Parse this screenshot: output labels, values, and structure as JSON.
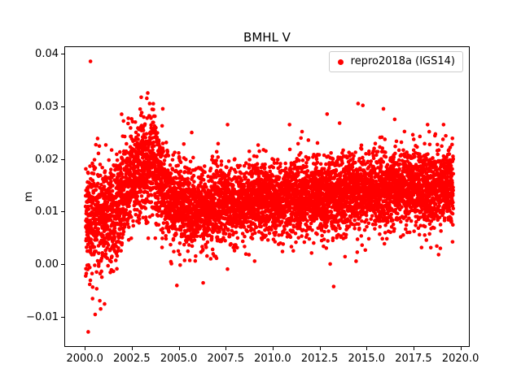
{
  "chart_data": {
    "type": "scatter",
    "title": "BMHL V",
    "xlabel": "",
    "ylabel": "m",
    "grid": false,
    "xlim": [
      1998.95,
      2020.45
    ],
    "ylim": [
      -0.0155,
      0.0412
    ],
    "x_tick_values": [
      2000.0,
      2002.5,
      2005.0,
      2007.5,
      2010.0,
      2012.5,
      2015.0,
      2017.5,
      2020.0
    ],
    "x_tick_labels": [
      "2000.0",
      "2002.5",
      "2005.0",
      "2007.5",
      "2010.0",
      "2012.5",
      "2015.0",
      "2017.5",
      "2020.0"
    ],
    "y_tick_values": [
      -0.01,
      0.0,
      0.01,
      0.02,
      0.03,
      0.04
    ],
    "y_tick_labels": [
      "−0.01",
      "0.00",
      "0.01",
      "0.02",
      "0.03",
      "0.04"
    ],
    "legend": {
      "position": "upper right",
      "entries": [
        {
          "label": "repro2018a (IGS14)",
          "color": "#ff0000",
          "marker": "circle"
        }
      ]
    },
    "series": [
      {
        "name": "repro2018a (IGS14)",
        "color": "#ff0000",
        "marker_radius_px": 2.3,
        "n_points": 6500,
        "t_start": 2000.04,
        "t_end": 2019.62,
        "seed": 1234,
        "mean_knots": [
          [
            2000.0,
            0.0075
          ],
          [
            2000.8,
            0.0085
          ],
          [
            2001.5,
            0.01
          ],
          [
            2002.2,
            0.015
          ],
          [
            2002.8,
            0.018
          ],
          [
            2003.4,
            0.019
          ],
          [
            2003.9,
            0.017
          ],
          [
            2004.5,
            0.012
          ],
          [
            2005.5,
            0.0105
          ],
          [
            2007.0,
            0.011
          ],
          [
            2009.0,
            0.012
          ],
          [
            2011.0,
            0.0125
          ],
          [
            2013.0,
            0.013
          ],
          [
            2015.0,
            0.014
          ],
          [
            2017.0,
            0.0145
          ],
          [
            2019.6,
            0.0145
          ]
        ],
        "std_knots": [
          [
            2000.0,
            0.005
          ],
          [
            2001.0,
            0.005
          ],
          [
            2002.0,
            0.0052
          ],
          [
            2003.5,
            0.0048
          ],
          [
            2004.5,
            0.0042
          ],
          [
            2006.0,
            0.0037
          ],
          [
            2010.0,
            0.0036
          ],
          [
            2019.6,
            0.0036
          ]
        ],
        "outlier_rate": 0.01,
        "outlier_scale": 2.0,
        "explicit_outliers": [
          [
            2000.3,
            0.0385
          ],
          [
            2000.18,
            -0.0128
          ],
          [
            2000.55,
            -0.0095
          ],
          [
            2001.05,
            -0.0075
          ],
          [
            2003.35,
            0.0325
          ],
          [
            2003.3,
            0.0315
          ],
          [
            2003.45,
            0.0305
          ],
          [
            2004.15,
            0.0295
          ],
          [
            2007.6,
            0.0265
          ],
          [
            2010.9,
            0.0265
          ],
          [
            2012.9,
            0.0285
          ],
          [
            2013.25,
            -0.0042
          ],
          [
            2014.55,
            0.0305
          ],
          [
            2015.9,
            0.0295
          ],
          [
            2016.5,
            0.0275
          ],
          [
            2018.25,
            0.0265
          ],
          [
            2019.1,
            0.0265
          ],
          [
            2004.9,
            -0.004
          ],
          [
            2006.3,
            -0.0035
          ]
        ]
      }
    ],
    "colors": {
      "points": "#ff0000",
      "axes": "#000000",
      "legend_border": "#cccccc",
      "background": "#ffffff"
    }
  }
}
